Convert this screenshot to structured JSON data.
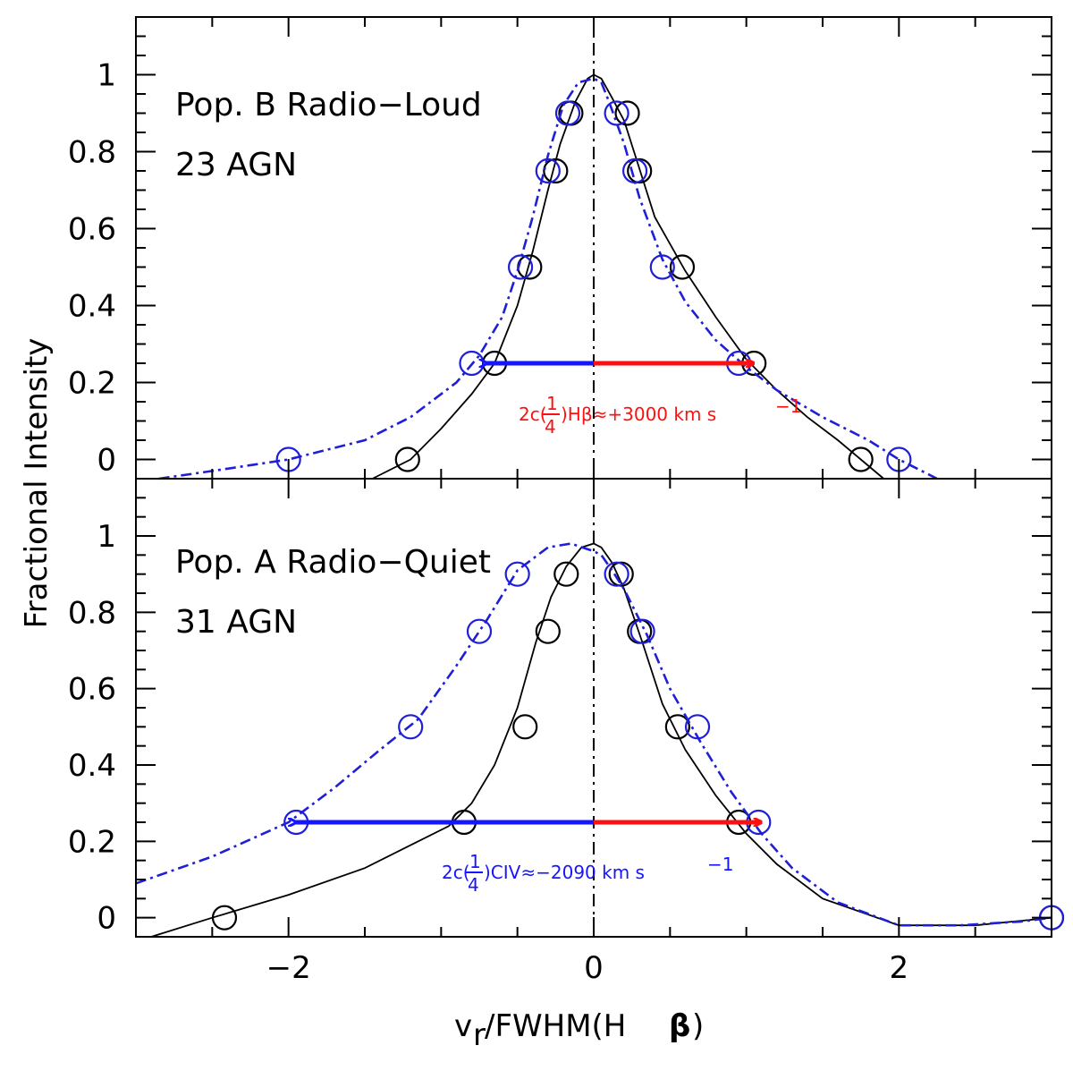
{
  "chart_data": [
    {
      "type": "line",
      "panel": "top",
      "labels": [
        "Pop. B Radio−Loud",
        "23 AGN"
      ],
      "annotation": {
        "prefix": "2c(",
        "frac_num": "1",
        "frac_den": "4",
        "suffix": ")Hβ≈+3000 km s",
        "exp": "−1"
      },
      "xlim": [
        -3,
        3
      ],
      "ylim": [
        -0.05,
        1.15
      ],
      "colors": {
        "hbeta": "#000000",
        "civ": "#1f1fd6",
        "blue_arrow": "#1515ff",
        "red_arrow": "#ff1010"
      },
      "arrow": {
        "y": 0.25,
        "left_end": -0.7,
        "right_end": 1.05
      },
      "series": [
        {
          "style": "black-solid-circles",
          "curve": {
            "x": [
              -1.45,
              -1.2,
              -1.0,
              -0.8,
              -0.65,
              -0.5,
              -0.4,
              -0.3,
              -0.22,
              -0.12,
              -0.04,
              0.0,
              0.05,
              0.12,
              0.2,
              0.28,
              0.4,
              0.6,
              0.8,
              1.0,
              1.2,
              1.4,
              1.6,
              1.75,
              1.9
            ],
            "y": [
              -0.05,
              0.0,
              0.08,
              0.17,
              0.25,
              0.4,
              0.54,
              0.7,
              0.82,
              0.93,
              0.99,
              1.0,
              0.99,
              0.94,
              0.88,
              0.78,
              0.63,
              0.49,
              0.37,
              0.26,
              0.18,
              0.11,
              0.05,
              0.0,
              -0.05
            ]
          },
          "points": [
            [
              -1.22,
              0.0
            ],
            [
              -0.65,
              0.25
            ],
            [
              -0.42,
              0.5
            ],
            [
              -0.25,
              0.75
            ],
            [
              -0.15,
              0.9
            ],
            [
              0.22,
              0.9
            ],
            [
              0.3,
              0.75
            ],
            [
              0.58,
              0.5
            ],
            [
              1.05,
              0.25
            ],
            [
              1.75,
              0.0
            ]
          ]
        },
        {
          "style": "blue-dashdot-circles",
          "curve": {
            "x": [
              -2.85,
              -2.5,
              -2.0,
              -1.5,
              -1.2,
              -0.9,
              -0.75,
              -0.6,
              -0.5,
              -0.4,
              -0.3,
              -0.2,
              -0.1,
              0.0,
              0.05,
              0.1,
              0.2,
              0.3,
              0.45,
              0.6,
              0.8,
              1.0,
              1.2,
              1.5,
              1.8,
              2.0,
              2.25
            ],
            "y": [
              -0.05,
              -0.03,
              0.0,
              0.05,
              0.11,
              0.2,
              0.27,
              0.37,
              0.49,
              0.63,
              0.79,
              0.92,
              0.98,
              0.99,
              0.98,
              0.93,
              0.82,
              0.68,
              0.52,
              0.41,
              0.31,
              0.24,
              0.18,
              0.11,
              0.05,
              0.0,
              -0.05
            ]
          },
          "points": [
            [
              -2.0,
              0.0
            ],
            [
              -0.8,
              0.25
            ],
            [
              -0.48,
              0.5
            ],
            [
              -0.3,
              0.75
            ],
            [
              -0.17,
              0.9
            ],
            [
              0.15,
              0.9
            ],
            [
              0.27,
              0.75
            ],
            [
              0.45,
              0.5
            ],
            [
              0.95,
              0.25
            ],
            [
              2.0,
              0.0
            ]
          ]
        }
      ]
    },
    {
      "type": "line",
      "panel": "bottom",
      "labels": [
        "Pop. A Radio−Quiet",
        "31 AGN"
      ],
      "annotation": {
        "prefix": "2c(",
        "frac_num": "1",
        "frac_den": "4",
        "suffix": ")CIV≈−2090 km s",
        "exp": "−1"
      },
      "xlim": [
        -3,
        3
      ],
      "ylim": [
        -0.05,
        1.15
      ],
      "xticks": [
        -2,
        0,
        2
      ],
      "xlabel": "v",
      "xlabel_sub": "r",
      "xlabel_rest": "/FWHM(H ",
      "xlabel_greek": "β",
      "xlabel_close": ")",
      "ylabel": "Fractional Intensity",
      "arrow": {
        "y": 0.25,
        "left_end": -1.95,
        "right_end": 1.1
      },
      "series": [
        {
          "style": "black-solid-circles",
          "curve": {
            "x": [
              -2.9,
              -2.5,
              -2.0,
              -1.5,
              -1.2,
              -0.95,
              -0.8,
              -0.65,
              -0.5,
              -0.38,
              -0.28,
              -0.18,
              -0.08,
              0.0,
              0.05,
              0.12,
              0.2,
              0.32,
              0.45,
              0.6,
              0.8,
              1.0,
              1.2,
              1.5,
              2.0,
              2.5,
              3.0
            ],
            "y": [
              -0.05,
              0.0,
              0.06,
              0.13,
              0.19,
              0.24,
              0.3,
              0.4,
              0.55,
              0.72,
              0.84,
              0.92,
              0.97,
              0.98,
              0.97,
              0.93,
              0.86,
              0.72,
              0.56,
              0.44,
              0.32,
              0.22,
              0.14,
              0.05,
              -0.02,
              -0.02,
              0.0
            ]
          },
          "points": [
            [
              -2.42,
              0.0
            ],
            [
              -0.85,
              0.25
            ],
            [
              -0.45,
              0.5
            ],
            [
              -0.3,
              0.75
            ],
            [
              -0.18,
              0.9
            ],
            [
              0.18,
              0.9
            ],
            [
              0.3,
              0.75
            ],
            [
              0.55,
              0.5
            ],
            [
              0.95,
              0.25
            ],
            [
              3.0,
              0.0
            ]
          ]
        },
        {
          "style": "blue-dashdot-circles",
          "curve": {
            "x": [
              -3.0,
              -2.5,
              -2.0,
              -1.7,
              -1.4,
              -1.15,
              -0.9,
              -0.7,
              -0.5,
              -0.3,
              -0.15,
              0.0,
              0.05,
              0.12,
              0.2,
              0.35,
              0.5,
              0.7,
              0.9,
              1.1,
              1.3,
              1.6,
              2.0,
              2.4,
              2.8,
              3.0
            ],
            "y": [
              0.09,
              0.16,
              0.25,
              0.34,
              0.44,
              0.52,
              0.66,
              0.78,
              0.91,
              0.97,
              0.98,
              0.96,
              0.95,
              0.91,
              0.86,
              0.74,
              0.6,
              0.46,
              0.33,
              0.22,
              0.13,
              0.04,
              -0.02,
              -0.02,
              -0.01,
              0.0
            ]
          },
          "points": [
            [
              -1.95,
              0.25
            ],
            [
              -1.2,
              0.5
            ],
            [
              -0.75,
              0.75
            ],
            [
              -0.5,
              0.9
            ],
            [
              0.15,
              0.9
            ],
            [
              0.32,
              0.75
            ],
            [
              0.68,
              0.5
            ],
            [
              1.08,
              0.25
            ],
            [
              3.0,
              0.0
            ]
          ]
        }
      ]
    }
  ],
  "yticks": [
    "0",
    "0.2",
    "0.4",
    "0.6",
    "0.8",
    "1"
  ],
  "xticks": [
    "−2",
    "0",
    "2"
  ]
}
